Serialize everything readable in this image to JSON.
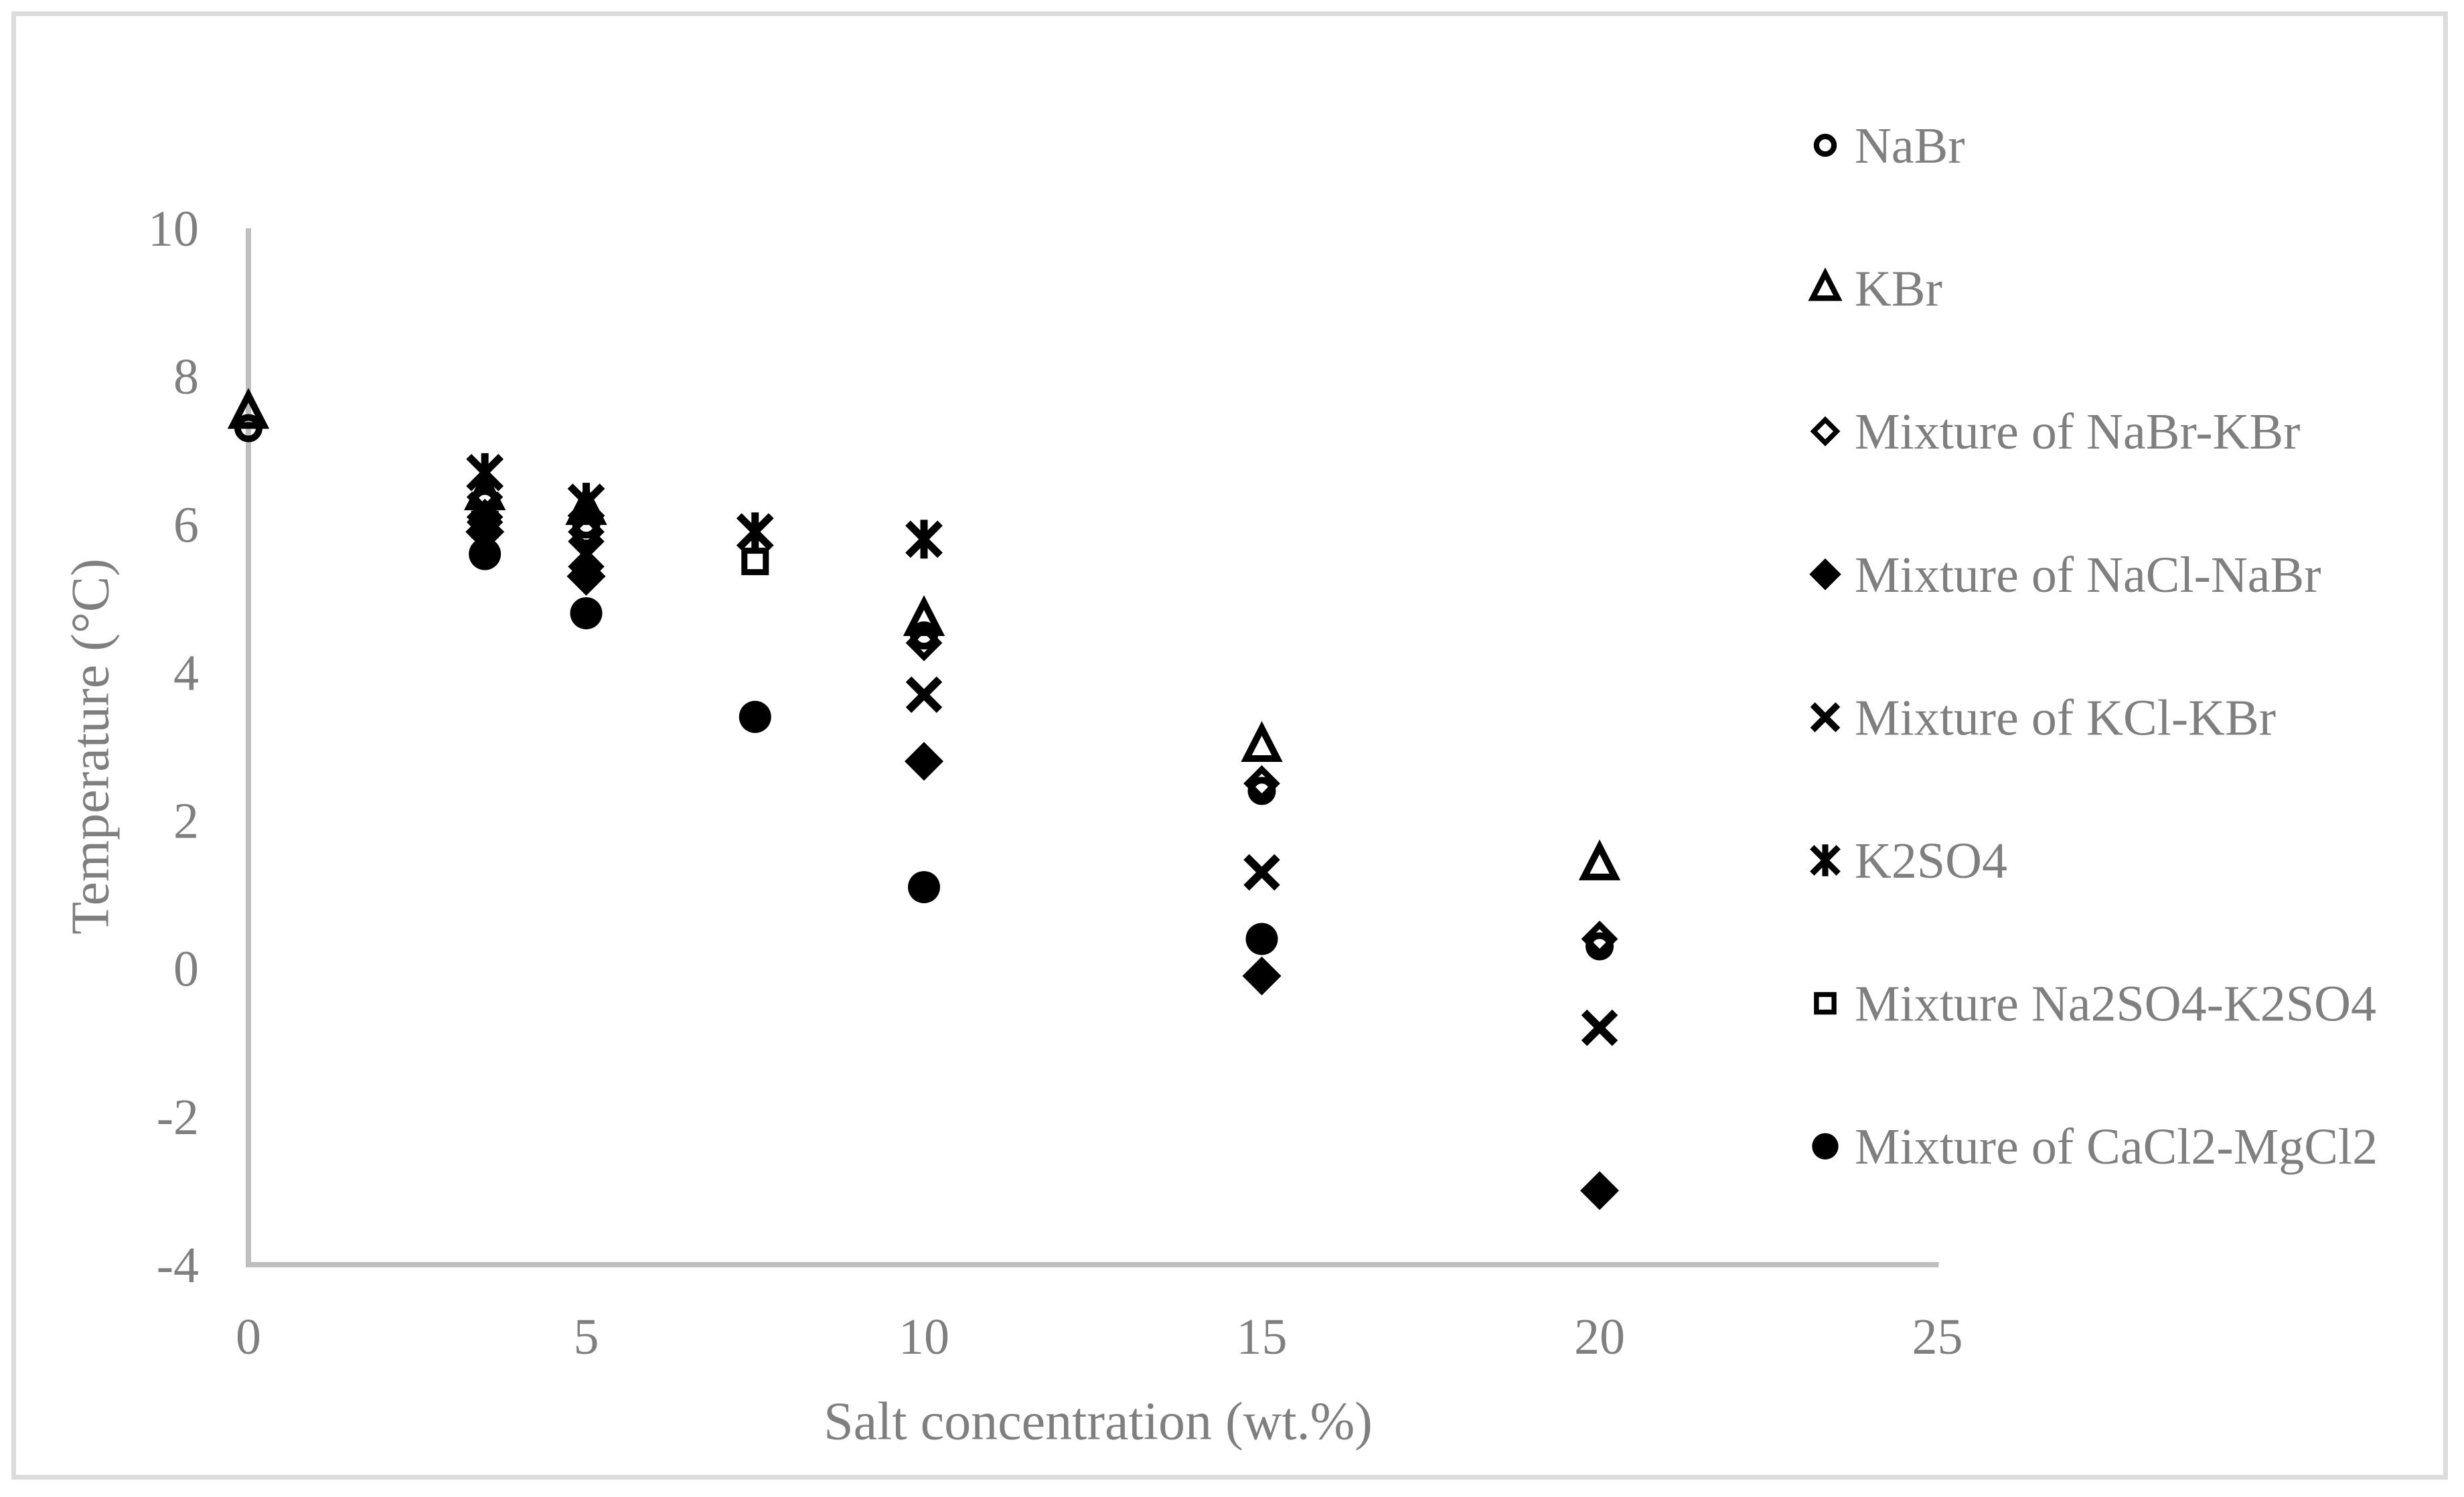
{
  "figure": {
    "background": "#ffffff",
    "frame_color": "#dcdcdc",
    "axis_line_color": "#bfbfbf",
    "text_color": "#7f7f7f",
    "marker_color": "#000000"
  },
  "chart_data": {
    "type": "scatter",
    "title": "",
    "xlabel": "Salt concentration (wt.%)",
    "ylabel": "Temperature (°C)",
    "xlim": [
      0,
      25
    ],
    "ylim": [
      -4,
      10
    ],
    "x_ticks": [
      "0",
      "5",
      "10",
      "15",
      "20",
      "25"
    ],
    "x_tick_values": [
      0,
      5,
      10,
      15,
      20,
      25
    ],
    "y_ticks": [
      "10",
      "8",
      "6",
      "4",
      "2",
      "0",
      "-2",
      "-4"
    ],
    "y_tick_values": [
      10,
      8,
      6,
      4,
      2,
      0,
      -2,
      -4
    ],
    "grid": false,
    "legend_position": "right",
    "series": [
      {
        "name": "NaBr",
        "marker": "circle-open",
        "points": [
          [
            0,
            7.3
          ],
          [
            3.5,
            6.3
          ],
          [
            5,
            6.0
          ],
          [
            10,
            4.5
          ],
          [
            15,
            2.4
          ],
          [
            20,
            0.3
          ]
        ]
      },
      {
        "name": "KBr",
        "marker": "triangle-open",
        "points": [
          [
            0,
            7.5
          ],
          [
            3.5,
            6.4
          ],
          [
            5,
            6.2
          ],
          [
            10,
            4.7
          ],
          [
            15,
            3.0
          ],
          [
            20,
            1.4
          ]
        ]
      },
      {
        "name": "Mixture of NaBr-KBr",
        "marker": "diamond-open",
        "points": [
          [
            3.5,
            6.1
          ],
          [
            5,
            5.9
          ],
          [
            10,
            4.4
          ],
          [
            15,
            2.5
          ],
          [
            20,
            0.4
          ]
        ]
      },
      {
        "name": "Mixture of NaCl-NaBr",
        "marker": "diamond-filled",
        "points": [
          [
            3.5,
            5.9
          ],
          [
            5,
            5.3
          ],
          [
            10,
            2.8
          ],
          [
            15,
            -0.1
          ],
          [
            20,
            -3.0
          ]
        ]
      },
      {
        "name": "Mixture of KCl-KBr",
        "marker": "x",
        "points": [
          [
            3.5,
            6.2
          ],
          [
            5,
            5.6
          ],
          [
            10,
            3.7
          ],
          [
            15,
            1.3
          ],
          [
            20,
            -0.8
          ]
        ]
      },
      {
        "name": "K2SO4",
        "marker": "asterisk",
        "points": [
          [
            3.5,
            6.7
          ],
          [
            5,
            6.3
          ],
          [
            7.5,
            5.9
          ],
          [
            10,
            5.8
          ]
        ]
      },
      {
        "name": "Mixture Na2SO4-K2SO4",
        "marker": "square-open",
        "points": [
          [
            3.5,
            6.0
          ],
          [
            5,
            5.9
          ],
          [
            7.5,
            5.5
          ]
        ]
      },
      {
        "name": "Mixture of CaCl2-MgCl2",
        "marker": "circle-filled",
        "points": [
          [
            3.5,
            5.6
          ],
          [
            5,
            4.8
          ],
          [
            7.5,
            3.4
          ],
          [
            10,
            1.1
          ],
          [
            15,
            0.4
          ]
        ]
      }
    ]
  }
}
